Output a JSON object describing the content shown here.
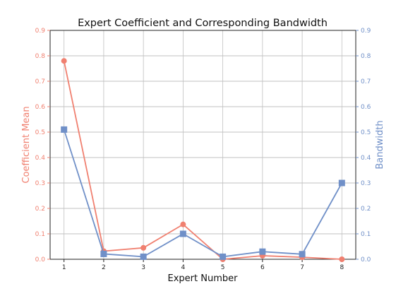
{
  "chart_data": {
    "type": "line",
    "title": "Expert Coefficient and Corresponding Bandwidth",
    "xlabel": "Expert Number",
    "ylabel_left": "Coefficient Mean",
    "ylabel_right": "Bandwidth",
    "x": [
      1,
      2,
      3,
      4,
      5,
      6,
      7,
      8
    ],
    "xticks": [
      "1",
      "2",
      "3",
      "4",
      "5",
      "6",
      "7",
      "8"
    ],
    "ylim_left": [
      0,
      0.9
    ],
    "ylim_right": [
      0,
      0.9
    ],
    "yticks_left": [
      "0.0",
      "0.1",
      "0.2",
      "0.3",
      "0.4",
      "0.5",
      "0.6",
      "0.7",
      "0.8",
      "0.9"
    ],
    "yticks_right": [
      "0.0",
      "0.1",
      "0.2",
      "0.3",
      "0.4",
      "0.5",
      "0.6",
      "0.7",
      "0.8",
      "0.9"
    ],
    "grid": true,
    "series": [
      {
        "axis": "left",
        "marker": "circle",
        "color": "#f08070",
        "values": [
          0.78,
          0.032,
          0.045,
          0.137,
          0.0,
          0.014,
          0.008,
          0.0
        ]
      },
      {
        "axis": "right",
        "marker": "square",
        "color": "#7090c8",
        "values": [
          0.51,
          0.021,
          0.01,
          0.1,
          0.01,
          0.03,
          0.02,
          0.3
        ]
      }
    ],
    "left_axis_color": "#f08070",
    "right_axis_color": "#7090c8"
  }
}
